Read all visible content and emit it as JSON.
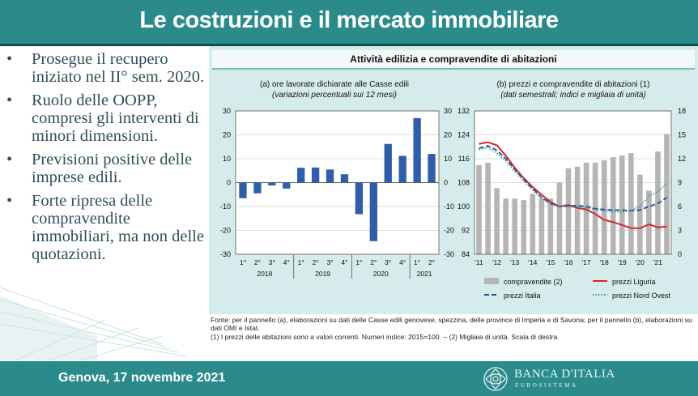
{
  "slide": {
    "title": "Le costruzioni e il mercato immobiliare",
    "footer_date": "Genova, 17 novembre 2021",
    "logo_name": "BANCA D'ITALIA",
    "logo_sub": "EUROSISTEMA",
    "colors": {
      "header": "#2b8b8b",
      "bullet_text": "#2e4f57"
    }
  },
  "bullets": [
    "Prosegue il recupero iniziato nel II° sem. 2020.",
    "Ruolo delle OOPP, compresi gli interventi di minori dimensioni.",
    "Previsioni positive delle imprese edili.",
    "Forte ripresa delle compravendite immobiliari, ma non delle quotazioni."
  ],
  "figure": {
    "title": "Attività edilizia e compravendite di abitazioni",
    "footnote_source": "Fonte: per il pannello (a), elaborazioni su dati delle Casse edili genovese, spezzina, delle province di Imperia e di Savona; per il pannello (b), elaborazioni su dati OMI e Istat.",
    "footnote_notes": "(1) I prezzi delle abitazioni sono a valori correnti. Numeri indice: 2015=100. – (2) Migliaia di unità. Scala di destra."
  },
  "chart_data": [
    {
      "type": "bar",
      "title": "(a) ore lavorate dichiarate alle Casse edili",
      "subtitle": "(variazioni percentuali sui 12 mesi)",
      "categories": [
        "1°",
        "2°",
        "3°",
        "4°",
        "1°",
        "2°",
        "3°",
        "4°",
        "1°",
        "2°",
        "3°",
        "4°",
        "1°",
        "2°"
      ],
      "groups": [
        {
          "label": "2018",
          "count": 4
        },
        {
          "label": "2019",
          "count": 4
        },
        {
          "label": "2020",
          "count": 4
        },
        {
          "label": "2021",
          "count": 2
        }
      ],
      "values": [
        -6.5,
        -4.5,
        -1.2,
        -2.5,
        6.2,
        6.3,
        5.5,
        3.5,
        -13.2,
        -24.5,
        16.2,
        11.2,
        27.0,
        12.0
      ],
      "ylim": [
        -30,
        30
      ],
      "yticks": [
        "30",
        "20",
        "10",
        "0",
        "-10",
        "-20",
        "-30"
      ],
      "color": "#2f5ea8",
      "grid": true
    },
    {
      "type": "line",
      "title": "(b) prezzi e compravendite di abitazioni (1)",
      "subtitle": "(dati semestrali; indici e migliaia di unità)",
      "x_labels": [
        "'11",
        "'12",
        "'13",
        "'14",
        "'15",
        "'16",
        "'17",
        "'18",
        "'19",
        "'20",
        "'21"
      ],
      "ylim_left": [
        84,
        132
      ],
      "yticks_left": [
        "132",
        "124",
        "116",
        "108",
        "100",
        "92",
        "84"
      ],
      "ylim_right": [
        0,
        18
      ],
      "yticks_right": [
        "18",
        "15",
        "12",
        "9",
        "6",
        "3",
        "0"
      ],
      "bars": {
        "name": "compravendite (2)",
        "axis": "right",
        "color": "#b5b5b5",
        "values": [
          11.2,
          11.5,
          8.3,
          7.0,
          7.0,
          6.8,
          7.6,
          7.0,
          7.0,
          9.0,
          10.8,
          11.0,
          11.5,
          11.5,
          11.8,
          12.2,
          12.4,
          12.7,
          10.0,
          8.0,
          12.9,
          15.1
        ]
      },
      "series": [
        {
          "name": "prezzi Liguria",
          "axis": "left",
          "color": "#d9252a",
          "style": "solid",
          "values": [
            121.0,
            121.5,
            120.5,
            117.0,
            113.0,
            109.5,
            106.5,
            104.0,
            101.5,
            100.0,
            100.5,
            99.5,
            99.0,
            97.5,
            95.5,
            94.8,
            93.8,
            92.8,
            92.7,
            94.0,
            93.0,
            93.3
          ]
        },
        {
          "name": "prezzi Italia",
          "axis": "left",
          "color": "#1f4e9c",
          "style": "dashed",
          "values": [
            119.5,
            120.3,
            118.8,
            116.0,
            112.5,
            109.0,
            106.0,
            103.0,
            101.0,
            100.0,
            100.2,
            100.3,
            100.0,
            99.3,
            99.0,
            98.8,
            98.8,
            98.6,
            98.8,
            100.0,
            101.0,
            103.0
          ]
        },
        {
          "name": "prezzi Nord Ovest",
          "axis": "left",
          "color": "#3f9a92",
          "style": "dotted",
          "values": [
            119.0,
            119.8,
            117.8,
            115.2,
            111.8,
            108.5,
            105.5,
            102.8,
            100.8,
            100.0,
            100.0,
            99.8,
            99.5,
            99.0,
            98.6,
            98.3,
            98.2,
            98.6,
            100.0,
            103.5,
            105.0,
            107.8
          ]
        }
      ],
      "legend_position": "bottom"
    }
  ]
}
